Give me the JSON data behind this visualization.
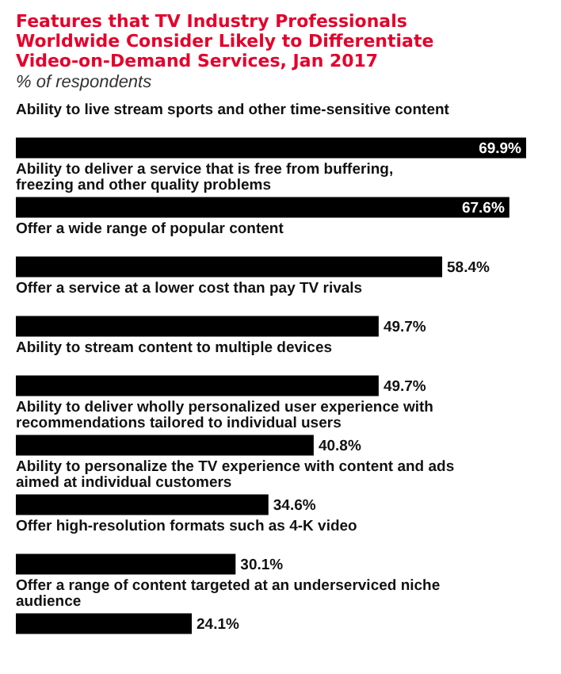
{
  "chart_data": {
    "type": "bar",
    "orientation": "horizontal",
    "title": "Features that TV Industry Professionals Worldwide Consider Likely to Differentiate Video-on-Demand Services, Jan 2017",
    "subtitle": "% of respondents",
    "categories": [
      "Ability to live stream sports and other time-sensitive content",
      "Ability to deliver a service that is free from buffering, freezing and other quality problems",
      "Offer a wide range of popular content",
      "Offer a service at a lower cost than pay TV rivals",
      "Ability to stream content to multiple devices",
      "Ability to deliver wholly personalized user experience with recommendations tailored to individual users",
      "Ability to personalize the TV experience with content and ads aimed at individual customers",
      "Offer high-resolution formats such as 4-K video",
      "Offer a range of content targeted at an underserviced niche audience"
    ],
    "values": [
      69.9,
      67.6,
      58.4,
      49.7,
      49.7,
      40.8,
      34.6,
      30.1,
      24.1
    ],
    "value_labels": [
      "69.9%",
      "67.6%",
      "58.4%",
      "49.7%",
      "49.7%",
      "40.8%",
      "34.6%",
      "30.1%",
      "24.1%"
    ],
    "color": "#000000"
  }
}
